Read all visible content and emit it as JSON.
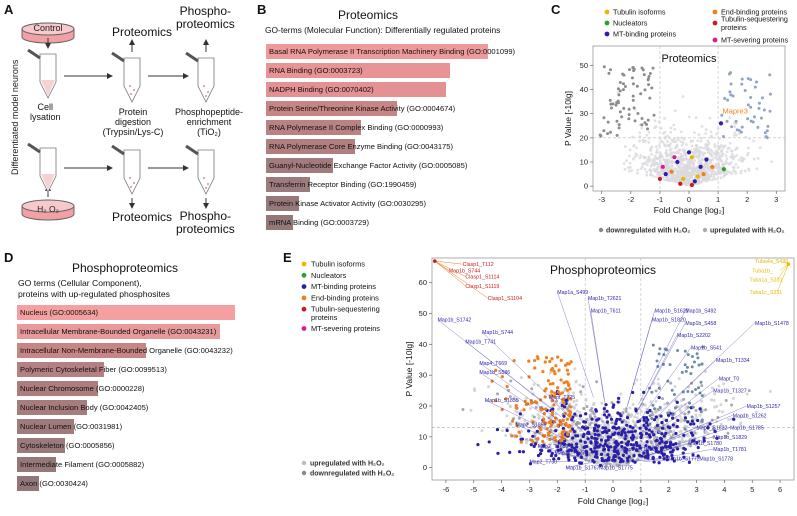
{
  "panelA": {
    "letter": "A",
    "control": "Control",
    "h2o2": "H₂ O₂",
    "side_label": "Differentiated model neurons",
    "cell_lysis": "Cell\nlysation",
    "digestion": "Protein\ndigestion\n(Trypsin/Lys-C)",
    "enrichment": "Phosphopeptide-\nenrichment\n(TiO₂)",
    "proteomics_top": "Proteomics",
    "phospho_top": "Phospho-\nproteomics",
    "proteomics_bottom": "Proteomics",
    "phospho_bottom": "Phospho-\nproteomics"
  },
  "panelB": {
    "letter": "B",
    "title": "Proteomics",
    "subtitle": "GO-terms (Molecular Function): Differentially regulated proteins",
    "bars": [
      {
        "label": "Basal RNA Polymerase II Transcription Machinery Binding (GO:0001099)",
        "value": 1.0,
        "color": "#ef9a9a"
      },
      {
        "label": "RNA Binding (GO:0003723)",
        "value": 0.83,
        "color": "#e89495"
      },
      {
        "label": "NADPH Binding (GO:0070402)",
        "value": 0.81,
        "color": "#e39193"
      },
      {
        "label": "Protein Serine/Threonine Kinase Activity (GO:0004674)",
        "value": 0.59,
        "color": "#c88586"
      },
      {
        "label": "RNA Polymerase II Complex Binding (GO:0000993)",
        "value": 0.43,
        "color": "#b98283"
      },
      {
        "label": "RNA Polymerase Core Enzyme Binding (GO:0043175)",
        "value": 0.4,
        "color": "#b27f80"
      },
      {
        "label": "Guanyl-Nucleotide Exchange Factor Activity (GO:0005085)",
        "value": 0.3,
        "color": "#a27b7c"
      },
      {
        "label": "Transferrin Receptor Binding (GO:1990459)",
        "value": 0.2,
        "color": "#9d7a7b"
      },
      {
        "label": "Protein Kinase Activator Activity (GO:0030295)",
        "value": 0.15,
        "color": "#987879"
      },
      {
        "label": "mRNA Binding (GO:0003729)",
        "value": 0.12,
        "color": "#957778"
      }
    ]
  },
  "panelC": {
    "letter": "C",
    "title": "Proteomics",
    "xlabel": "Fold Change [log₂]",
    "ylabel": "P Value [-10lg]",
    "xticks": [
      "-3",
      "-2",
      "-1",
      "0",
      "1",
      "2",
      "3"
    ],
    "yticks": [
      "0",
      "10",
      "20",
      "30",
      "40",
      "50"
    ],
    "highlight_label": "Mapre3",
    "legend": [
      {
        "label": "Tubulin isoforms",
        "color": "#e6b800"
      },
      {
        "label": "Nucleators",
        "color": "#2ca02c"
      },
      {
        "label": "MT-binding proteins",
        "color": "#2a1fa8"
      },
      {
        "label": "End-binding proteins",
        "color": "#f07f1f"
      },
      {
        "label": "Tubulin-sequestering proteins",
        "color": "#c81d1d"
      },
      {
        "label": "MT-severing proteins",
        "color": "#e0198a"
      }
    ],
    "bottom_legend": [
      {
        "label": "downregulated with H₂O₂",
        "color": "#888"
      },
      {
        "label": "upregulated with H₂O₂",
        "color": "#aaa"
      }
    ]
  },
  "panelD": {
    "letter": "D",
    "title": "Phosphoproteomics",
    "subtitle1": "GO terms (Cellular Component),",
    "subtitle2": "proteins with up-regulated phosphosites",
    "bars": [
      {
        "label": "Nucleus (GO:0005634)",
        "value": 1.0,
        "color": "#f4a0a0"
      },
      {
        "label": "Intracellular Membrane-Bounded Organelle (GO:0043231)",
        "value": 0.93,
        "color": "#e89a9b"
      },
      {
        "label": "Intracellular Non-Membrane-Bounded Organelle (GO:0043232)",
        "value": 0.59,
        "color": "#c88586"
      },
      {
        "label": "Polymeric Cytoskeletal Fiber (GO:0099513)",
        "value": 0.4,
        "color": "#b58081"
      },
      {
        "label": "Nuclear Chromosome (GO:0000228)",
        "value": 0.37,
        "color": "#ad7d7e"
      },
      {
        "label": "Nuclear Inclusion Body (GO:0042405)",
        "value": 0.32,
        "color": "#a67c7d"
      },
      {
        "label": "Nuclear Lumen (GO:0031981)",
        "value": 0.26,
        "color": "#a07b7c"
      },
      {
        "label": "Cytoskeleton (GO:0005856)",
        "value": 0.22,
        "color": "#9b7a7b"
      },
      {
        "label": "Intermediate Filament (GO:0005882)",
        "value": 0.18,
        "color": "#977879"
      },
      {
        "label": "Axon (GO:0030424)",
        "value": 0.1,
        "color": "#937778"
      }
    ]
  },
  "panelE": {
    "letter": "E",
    "title": "Phosphoproteomics",
    "xlabel": "Fold Change [log₂]",
    "ylabel": "P Value [-10lg]",
    "xticks": [
      "-6",
      "-5",
      "-4",
      "-3",
      "-2",
      "-1",
      "0",
      "1",
      "2",
      "3",
      "4",
      "5",
      "6"
    ],
    "yticks": [
      "0",
      "10",
      "20",
      "30",
      "40",
      "50",
      "60"
    ],
    "legend": [
      {
        "label": "Tubulin isoforms",
        "color": "#e6b800"
      },
      {
        "label": "Nucleators",
        "color": "#2ca02c"
      },
      {
        "label": "MT-binding proteins",
        "color": "#2a1fa8"
      },
      {
        "label": "End-binding proteins",
        "color": "#f07f1f"
      },
      {
        "label": "Tubulin-sequestering proteins",
        "color": "#c81d1d"
      },
      {
        "label": "MT-severing proteins",
        "color": "#e0198a"
      }
    ],
    "bottom_legend": [
      {
        "label": "upregulated with H₂O₂",
        "color": "#bbb"
      },
      {
        "label": "downregulated with H₂O₂",
        "color": "#888"
      }
    ],
    "red_labels": [
      "Clasp1_T112",
      "Map1b_S744",
      "Clasp1_S1114",
      "Clasp1_S1119",
      "Clasp1_S1104"
    ],
    "yellow_labels": [
      "Tuba4a_S439",
      "Tuba1b_",
      "Tuba1a_S331",
      "Tuba1c_S331"
    ],
    "purple_labels": [
      {
        "t": "Map1a_S499",
        "x": -2.0,
        "y": 57
      },
      {
        "t": "Map1b_S1742",
        "x": -6.3,
        "y": 48
      },
      {
        "t": "Map1b_T2621",
        "x": -0.9,
        "y": 55
      },
      {
        "t": "Map1b_T611",
        "x": -0.8,
        "y": 51
      },
      {
        "t": "Map1b_S1621",
        "x": 1.5,
        "y": 51
      },
      {
        "t": "Map1b_S492",
        "x": 2.6,
        "y": 51
      },
      {
        "t": "Map1b_S1820",
        "x": 1.4,
        "y": 48
      },
      {
        "t": "Map1b_S458",
        "x": 2.6,
        "y": 47
      },
      {
        "t": "Map1b_S1478",
        "x": 5.1,
        "y": 47
      },
      {
        "t": "Map1b_T741",
        "x": -5.3,
        "y": 41
      },
      {
        "t": "Map1b_S744",
        "x": -4.7,
        "y": 44
      },
      {
        "t": "Map4_T669",
        "x": -4.8,
        "y": 34
      },
      {
        "t": "Map1b_S586",
        "x": -4.8,
        "y": 31
      },
      {
        "t": "Map1b_S1855",
        "x": -4.6,
        "y": 22
      },
      {
        "t": "Mapt_T725",
        "x": -2.3,
        "y": 23
      },
      {
        "t": "Map1b_S2202",
        "x": 2.3,
        "y": 43
      },
      {
        "t": "Map1b_S541",
        "x": 2.8,
        "y": 39
      },
      {
        "t": "Map1b_T1334",
        "x": 3.7,
        "y": 35
      },
      {
        "t": "Mapt_T0",
        "x": 3.8,
        "y": 29
      },
      {
        "t": "Map1b_T1327",
        "x": 3.6,
        "y": 25
      },
      {
        "t": "Map1b_S1257",
        "x": 4.8,
        "y": 20
      },
      {
        "t": "Map1b_S1262",
        "x": 4.3,
        "y": 17
      },
      {
        "t": "Map1b_S1785",
        "x": 4.2,
        "y": 13
      },
      {
        "t": "Map2_S1856",
        "x": -3.5,
        "y": 14
      },
      {
        "t": "Map2_T1659",
        "x": -2.7,
        "y": 7
      },
      {
        "t": "Map2_T730",
        "x": -3.0,
        "y": 2
      },
      {
        "t": "Map1b_T1274",
        "x": -2.1,
        "y": 5
      },
      {
        "t": "Map1b_S1767",
        "x": -1.7,
        "y": 0
      },
      {
        "t": "Map1b_S1775",
        "x": -0.5,
        "y": 0
      },
      {
        "t": "Map2_S1832",
        "x": 3.0,
        "y": 13
      },
      {
        "t": "Map1b_S1780",
        "x": 2.7,
        "y": 8
      },
      {
        "t": "Map1b_T1781",
        "x": 3.6,
        "y": 6
      },
      {
        "t": "Map1b_S1778",
        "x": 3.1,
        "y": 3
      },
      {
        "t": "Map1b_S1772",
        "x": 1.9,
        "y": 3
      },
      {
        "t": "Map1b_S1829",
        "x": 3.6,
        "y": 10
      },
      {
        "t": "Map1b_T1661",
        "x": 0.3,
        "y": 6
      }
    ]
  }
}
